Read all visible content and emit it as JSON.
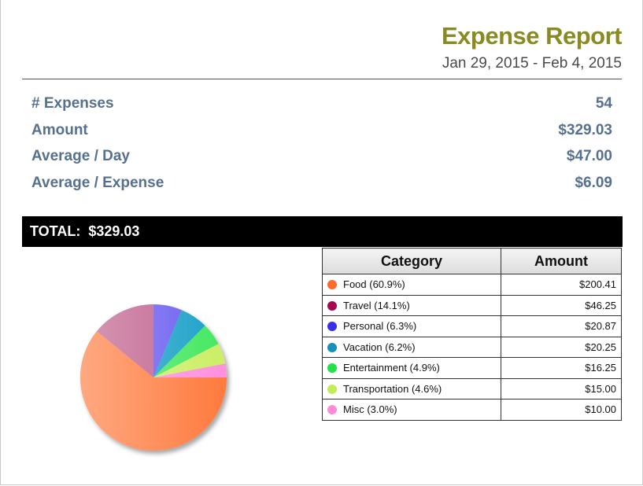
{
  "header": {
    "title": "Expense Report",
    "date_range": "Jan 29, 2015 - Feb 4, 2015"
  },
  "stats": [
    {
      "label": "# Expenses",
      "value": "54"
    },
    {
      "label": "Amount",
      "value": "$329.03"
    },
    {
      "label": "Average / Day",
      "value": "$47.00"
    },
    {
      "label": "Average / Expense",
      "value": "$6.09"
    }
  ],
  "total": {
    "label": "TOTAL:",
    "value": "$329.03"
  },
  "table": {
    "headers": [
      "Category",
      "Amount"
    ],
    "rows": [
      {
        "label": "Food (60.9%)",
        "amount": "$200.41",
        "color": "#ff6a2a"
      },
      {
        "label": "Travel (14.1%)",
        "amount": "$46.25",
        "color": "#a3094f"
      },
      {
        "label": "Personal (6.3%)",
        "amount": "$20.87",
        "color": "#3a2ee6"
      },
      {
        "label": "Vacation (6.2%)",
        "amount": "$20.25",
        "color": "#1890b8"
      },
      {
        "label": "Entertainment (4.9%)",
        "amount": "$16.25",
        "color": "#22e04a"
      },
      {
        "label": "Transportation (4.6%)",
        "amount": "$15.00",
        "color": "#c4ec55"
      },
      {
        "label": "Misc (3.0%)",
        "amount": "$10.00",
        "color": "#ff8ad8"
      }
    ]
  },
  "chart_data": {
    "type": "pie",
    "categories": [
      "Food",
      "Travel",
      "Personal",
      "Vacation",
      "Entertainment",
      "Transportation",
      "Misc"
    ],
    "values": [
      200.41,
      46.25,
      20.87,
      20.25,
      16.25,
      15.0,
      10.0
    ],
    "colors": [
      "#ff7a3d",
      "#c0608c",
      "#6a5cf0",
      "#1aa0c8",
      "#44e860",
      "#ccee66",
      "#ff90dd"
    ]
  }
}
